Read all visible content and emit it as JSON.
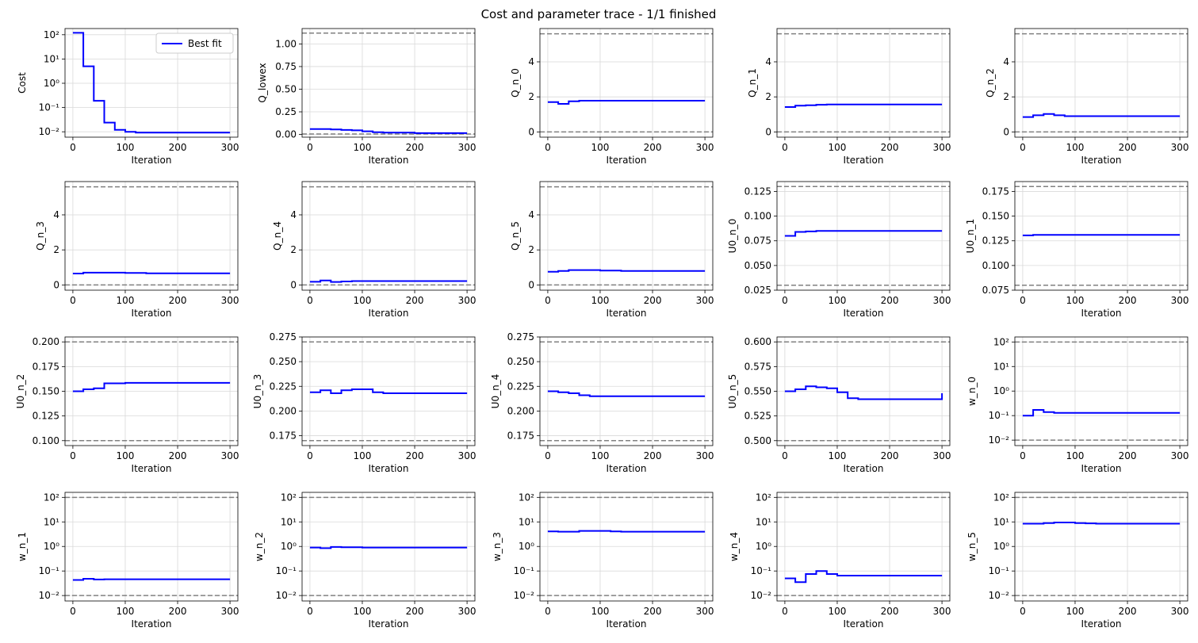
{
  "figure": {
    "title": "Cost and parameter trace - 1/1 finished",
    "legend_label": "Best fit",
    "series_color": "#0000ff",
    "bound_color": "#808080",
    "grid_color": "#d9d9d9"
  },
  "chart_data": [
    {
      "type": "line",
      "id": "cost",
      "ylabel": "Cost",
      "xlabel": "Iteration",
      "yscale": "log",
      "xlim": [
        -15,
        315
      ],
      "ylim": [
        0.006,
        180
      ],
      "xticks": [
        0,
        100,
        200,
        300
      ],
      "yticks": [
        0.01,
        0.1,
        1,
        10,
        100
      ],
      "ytick_labels": [
        "10⁻²",
        "10⁻¹",
        "10⁰",
        "10¹",
        "10²"
      ],
      "bounds": [],
      "legend": "upper right",
      "grid": true,
      "steps": [
        [
          0,
          120
        ],
        [
          20,
          5
        ],
        [
          40,
          0.19
        ],
        [
          60,
          0.024
        ],
        [
          80,
          0.012
        ],
        [
          100,
          0.01
        ],
        [
          120,
          0.0092
        ],
        [
          300,
          0.0092
        ]
      ]
    },
    {
      "type": "line",
      "id": "Q_lowex",
      "ylabel": "Q_lowex",
      "xlabel": "Iteration",
      "yscale": "linear",
      "xlim": [
        -15,
        315
      ],
      "ylim": [
        -0.03,
        1.17
      ],
      "xticks": [
        0,
        100,
        200,
        300
      ],
      "yticks": [
        0,
        0.25,
        0.5,
        0.75,
        1
      ],
      "ytick_labels": [
        "0.00",
        "0.25",
        "0.50",
        "0.75",
        "1.00"
      ],
      "bounds": [
        0.005,
        1.12
      ],
      "grid": true,
      "steps": [
        [
          0,
          0.06
        ],
        [
          40,
          0.055
        ],
        [
          60,
          0.05
        ],
        [
          80,
          0.045
        ],
        [
          100,
          0.035
        ],
        [
          120,
          0.025
        ],
        [
          140,
          0.02
        ],
        [
          200,
          0.015
        ],
        [
          300,
          0.015
        ]
      ]
    },
    {
      "type": "line",
      "id": "Q_n_0",
      "ylabel": "Q_n_0",
      "xlabel": "Iteration",
      "yscale": "linear",
      "xlim": [
        -15,
        315
      ],
      "ylim": [
        -0.3,
        5.9
      ],
      "xticks": [
        0,
        100,
        200,
        300
      ],
      "yticks": [
        0,
        2,
        4
      ],
      "ytick_labels": [
        "0",
        "2",
        "4"
      ],
      "bounds": [
        0,
        5.6
      ],
      "grid": true,
      "steps": [
        [
          0,
          1.7
        ],
        [
          20,
          1.6
        ],
        [
          40,
          1.75
        ],
        [
          60,
          1.78
        ],
        [
          300,
          1.78
        ]
      ]
    },
    {
      "type": "line",
      "id": "Q_n_1",
      "ylabel": "Q_n_1",
      "xlabel": "Iteration",
      "yscale": "linear",
      "xlim": [
        -15,
        315
      ],
      "ylim": [
        -0.3,
        5.9
      ],
      "xticks": [
        0,
        100,
        200,
        300
      ],
      "yticks": [
        0,
        2,
        4
      ],
      "ytick_labels": [
        "0",
        "2",
        "4"
      ],
      "bounds": [
        0,
        5.6
      ],
      "grid": true,
      "steps": [
        [
          0,
          1.42
        ],
        [
          20,
          1.5
        ],
        [
          40,
          1.52
        ],
        [
          60,
          1.55
        ],
        [
          80,
          1.57
        ],
        [
          300,
          1.57
        ]
      ]
    },
    {
      "type": "line",
      "id": "Q_n_2",
      "ylabel": "Q_n_2",
      "xlabel": "Iteration",
      "yscale": "linear",
      "xlim": [
        -15,
        315
      ],
      "ylim": [
        -0.3,
        5.9
      ],
      "xticks": [
        0,
        100,
        200,
        300
      ],
      "yticks": [
        0,
        2,
        4
      ],
      "ytick_labels": [
        "0",
        "2",
        "4"
      ],
      "bounds": [
        0,
        5.6
      ],
      "grid": true,
      "steps": [
        [
          0,
          0.85
        ],
        [
          20,
          0.95
        ],
        [
          40,
          1.02
        ],
        [
          60,
          0.95
        ],
        [
          80,
          0.9
        ],
        [
          300,
          0.9
        ]
      ]
    },
    {
      "type": "line",
      "id": "Q_n_3",
      "ylabel": "Q_n_3",
      "xlabel": "Iteration",
      "yscale": "linear",
      "xlim": [
        -15,
        315
      ],
      "ylim": [
        -0.3,
        5.9
      ],
      "xticks": [
        0,
        100,
        200,
        300
      ],
      "yticks": [
        0,
        2,
        4
      ],
      "ytick_labels": [
        "0",
        "2",
        "4"
      ],
      "bounds": [
        0,
        5.6
      ],
      "grid": true,
      "steps": [
        [
          0,
          0.65
        ],
        [
          20,
          0.7
        ],
        [
          100,
          0.68
        ],
        [
          140,
          0.66
        ],
        [
          300,
          0.66
        ]
      ]
    },
    {
      "type": "line",
      "id": "Q_n_4",
      "ylabel": "Q_n_4",
      "xlabel": "Iteration",
      "yscale": "linear",
      "xlim": [
        -15,
        315
      ],
      "ylim": [
        -0.3,
        5.9
      ],
      "xticks": [
        0,
        100,
        200,
        300
      ],
      "yticks": [
        0,
        2,
        4
      ],
      "ytick_labels": [
        "0",
        "2",
        "4"
      ],
      "bounds": [
        0,
        5.6
      ],
      "grid": true,
      "steps": [
        [
          0,
          0.18
        ],
        [
          20,
          0.25
        ],
        [
          40,
          0.17
        ],
        [
          60,
          0.2
        ],
        [
          80,
          0.22
        ],
        [
          300,
          0.22
        ]
      ]
    },
    {
      "type": "line",
      "id": "Q_n_5",
      "ylabel": "Q_n_5",
      "xlabel": "Iteration",
      "yscale": "linear",
      "xlim": [
        -15,
        315
      ],
      "ylim": [
        -0.3,
        5.9
      ],
      "xticks": [
        0,
        100,
        200,
        300
      ],
      "yticks": [
        0,
        2,
        4
      ],
      "ytick_labels": [
        "0",
        "2",
        "4"
      ],
      "bounds": [
        0,
        5.6
      ],
      "grid": true,
      "steps": [
        [
          0,
          0.75
        ],
        [
          20,
          0.8
        ],
        [
          40,
          0.85
        ],
        [
          100,
          0.82
        ],
        [
          140,
          0.8
        ],
        [
          300,
          0.8
        ]
      ]
    },
    {
      "type": "line",
      "id": "U0_n_0",
      "ylabel": "U0_n_0",
      "xlabel": "Iteration",
      "yscale": "linear",
      "xlim": [
        -15,
        315
      ],
      "ylim": [
        0.025,
        0.135
      ],
      "xticks": [
        0,
        100,
        200,
        300
      ],
      "yticks": [
        0.025,
        0.05,
        0.075,
        0.1,
        0.125
      ],
      "ytick_labels": [
        "0.025",
        "0.050",
        "0.075",
        "0.100",
        "0.125"
      ],
      "bounds": [
        0.03,
        0.13
      ],
      "grid": true,
      "steps": [
        [
          0,
          0.08
        ],
        [
          20,
          0.084
        ],
        [
          40,
          0.0845
        ],
        [
          60,
          0.085
        ],
        [
          300,
          0.085
        ]
      ]
    },
    {
      "type": "line",
      "id": "U0_n_1",
      "ylabel": "U0_n_1",
      "xlabel": "Iteration",
      "yscale": "linear",
      "xlim": [
        -15,
        315
      ],
      "ylim": [
        0.075,
        0.185
      ],
      "xticks": [
        0,
        100,
        200,
        300
      ],
      "yticks": [
        0.075,
        0.1,
        0.125,
        0.15,
        0.175
      ],
      "ytick_labels": [
        "0.075",
        "0.100",
        "0.125",
        "0.150",
        "0.175"
      ],
      "bounds": [
        0.08,
        0.18
      ],
      "grid": true,
      "steps": [
        [
          0,
          0.1305
        ],
        [
          20,
          0.131
        ],
        [
          300,
          0.131
        ]
      ]
    },
    {
      "type": "line",
      "id": "U0_n_2",
      "ylabel": "U0_n_2",
      "xlabel": "Iteration",
      "yscale": "linear",
      "xlim": [
        -15,
        315
      ],
      "ylim": [
        0.095,
        0.205
      ],
      "xticks": [
        0,
        100,
        200,
        300
      ],
      "yticks": [
        0.1,
        0.125,
        0.15,
        0.175,
        0.2
      ],
      "ytick_labels": [
        "0.100",
        "0.125",
        "0.150",
        "0.175",
        "0.200"
      ],
      "bounds": [
        0.1,
        0.2
      ],
      "grid": true,
      "steps": [
        [
          0,
          0.15
        ],
        [
          20,
          0.152
        ],
        [
          40,
          0.153
        ],
        [
          60,
          0.158
        ],
        [
          100,
          0.1585
        ],
        [
          300,
          0.1585
        ]
      ]
    },
    {
      "type": "line",
      "id": "U0_n_3",
      "ylabel": "U0_n_3",
      "xlabel": "Iteration",
      "yscale": "linear",
      "xlim": [
        -15,
        315
      ],
      "ylim": [
        0.165,
        0.275
      ],
      "xticks": [
        0,
        100,
        200,
        300
      ],
      "yticks": [
        0.175,
        0.2,
        0.225,
        0.25,
        0.275
      ],
      "ytick_labels": [
        "0.175",
        "0.200",
        "0.225",
        "0.250",
        "0.275"
      ],
      "bounds": [
        0.17,
        0.27
      ],
      "grid": true,
      "steps": [
        [
          0,
          0.219
        ],
        [
          20,
          0.221
        ],
        [
          40,
          0.218
        ],
        [
          60,
          0.221
        ],
        [
          80,
          0.222
        ],
        [
          120,
          0.219
        ],
        [
          140,
          0.218
        ],
        [
          300,
          0.218
        ]
      ]
    },
    {
      "type": "line",
      "id": "U0_n_4",
      "ylabel": "U0_n_4",
      "xlabel": "Iteration",
      "yscale": "linear",
      "xlim": [
        -15,
        315
      ],
      "ylim": [
        0.165,
        0.275
      ],
      "xticks": [
        0,
        100,
        200,
        300
      ],
      "yticks": [
        0.175,
        0.2,
        0.225,
        0.25,
        0.275
      ],
      "ytick_labels": [
        "0.175",
        "0.200",
        "0.225",
        "0.250",
        "0.275"
      ],
      "bounds": [
        0.17,
        0.27
      ],
      "grid": true,
      "steps": [
        [
          0,
          0.22
        ],
        [
          20,
          0.219
        ],
        [
          40,
          0.218
        ],
        [
          60,
          0.216
        ],
        [
          80,
          0.215
        ],
        [
          300,
          0.215
        ]
      ]
    },
    {
      "type": "line",
      "id": "U0_n_5",
      "ylabel": "U0_n_5",
      "xlabel": "Iteration",
      "yscale": "linear",
      "xlim": [
        -15,
        315
      ],
      "ylim": [
        0.495,
        0.605
      ],
      "xticks": [
        0,
        100,
        200,
        300
      ],
      "yticks": [
        0.5,
        0.525,
        0.55,
        0.575,
        0.6
      ],
      "ytick_labels": [
        "0.500",
        "0.525",
        "0.550",
        "0.575",
        "0.600"
      ],
      "bounds": [
        0.5,
        0.6
      ],
      "grid": true,
      "steps": [
        [
          0,
          0.55
        ],
        [
          20,
          0.552
        ],
        [
          40,
          0.555
        ],
        [
          60,
          0.554
        ],
        [
          80,
          0.553
        ],
        [
          100,
          0.549
        ],
        [
          120,
          0.543
        ],
        [
          140,
          0.542
        ],
        [
          295,
          0.542
        ],
        [
          300,
          0.548
        ]
      ]
    },
    {
      "type": "line",
      "id": "w_n_0",
      "ylabel": "w_n_0",
      "xlabel": "Iteration",
      "yscale": "log",
      "xlim": [
        -15,
        315
      ],
      "ylim": [
        0.006,
        160
      ],
      "xticks": [
        0,
        100,
        200,
        300
      ],
      "yticks": [
        0.01,
        0.1,
        1,
        10,
        100
      ],
      "ytick_labels": [
        "10⁻²",
        "10⁻¹",
        "10⁰",
        "10¹",
        "10²"
      ],
      "bounds": [
        0.01,
        100
      ],
      "grid": true,
      "steps": [
        [
          0,
          0.1
        ],
        [
          20,
          0.17
        ],
        [
          40,
          0.14
        ],
        [
          60,
          0.13
        ],
        [
          300,
          0.13
        ]
      ]
    },
    {
      "type": "line",
      "id": "w_n_1",
      "ylabel": "w_n_1",
      "xlabel": "Iteration",
      "yscale": "log",
      "xlim": [
        -15,
        315
      ],
      "ylim": [
        0.006,
        160
      ],
      "xticks": [
        0,
        100,
        200,
        300
      ],
      "yticks": [
        0.01,
        0.1,
        1,
        10,
        100
      ],
      "ytick_labels": [
        "10⁻²",
        "10⁻¹",
        "10⁰",
        "10¹",
        "10²"
      ],
      "bounds": [
        0.01,
        100
      ],
      "grid": true,
      "steps": [
        [
          0,
          0.043
        ],
        [
          20,
          0.048
        ],
        [
          40,
          0.045
        ],
        [
          60,
          0.046
        ],
        [
          300,
          0.046
        ]
      ]
    },
    {
      "type": "line",
      "id": "w_n_2",
      "ylabel": "w_n_2",
      "xlabel": "Iteration",
      "yscale": "log",
      "xlim": [
        -15,
        315
      ],
      "ylim": [
        0.006,
        160
      ],
      "xticks": [
        0,
        100,
        200,
        300
      ],
      "yticks": [
        0.01,
        0.1,
        1,
        10,
        100
      ],
      "ytick_labels": [
        "10⁻²",
        "10⁻¹",
        "10⁰",
        "10¹",
        "10²"
      ],
      "bounds": [
        0.01,
        100
      ],
      "grid": true,
      "steps": [
        [
          0,
          0.9
        ],
        [
          20,
          0.85
        ],
        [
          40,
          0.95
        ],
        [
          60,
          0.92
        ],
        [
          100,
          0.9
        ],
        [
          300,
          0.9
        ]
      ]
    },
    {
      "type": "line",
      "id": "w_n_3",
      "ylabel": "w_n_3",
      "xlabel": "Iteration",
      "yscale": "log",
      "xlim": [
        -15,
        315
      ],
      "ylim": [
        0.006,
        160
      ],
      "xticks": [
        0,
        100,
        200,
        300
      ],
      "yticks": [
        0.01,
        0.1,
        1,
        10,
        100
      ],
      "ytick_labels": [
        "10⁻²",
        "10⁻¹",
        "10⁰",
        "10¹",
        "10²"
      ],
      "bounds": [
        0.01,
        100
      ],
      "grid": true,
      "steps": [
        [
          0,
          4.1
        ],
        [
          20,
          4
        ],
        [
          60,
          4.3
        ],
        [
          120,
          4.1
        ],
        [
          140,
          4
        ],
        [
          300,
          4
        ]
      ]
    },
    {
      "type": "line",
      "id": "w_n_4",
      "ylabel": "w_n_4",
      "xlabel": "Iteration",
      "yscale": "log",
      "xlim": [
        -15,
        315
      ],
      "ylim": [
        0.006,
        160
      ],
      "xticks": [
        0,
        100,
        200,
        300
      ],
      "yticks": [
        0.01,
        0.1,
        1,
        10,
        100
      ],
      "ytick_labels": [
        "10⁻²",
        "10⁻¹",
        "10⁰",
        "10¹",
        "10²"
      ],
      "bounds": [
        0.01,
        100
      ],
      "grid": true,
      "steps": [
        [
          0,
          0.05
        ],
        [
          20,
          0.035
        ],
        [
          40,
          0.075
        ],
        [
          60,
          0.1
        ],
        [
          80,
          0.075
        ],
        [
          100,
          0.065
        ],
        [
          300,
          0.065
        ]
      ]
    },
    {
      "type": "line",
      "id": "w_n_5",
      "ylabel": "w_n_5",
      "xlabel": "Iteration",
      "yscale": "log",
      "xlim": [
        -15,
        315
      ],
      "ylim": [
        0.006,
        160
      ],
      "xticks": [
        0,
        100,
        200,
        300
      ],
      "yticks": [
        0.01,
        0.1,
        1,
        10,
        100
      ],
      "ytick_labels": [
        "10⁻²",
        "10⁻¹",
        "10⁰",
        "10¹",
        "10²"
      ],
      "bounds": [
        0.01,
        100
      ],
      "grid": true,
      "steps": [
        [
          0,
          8.5
        ],
        [
          40,
          9
        ],
        [
          60,
          9.5
        ],
        [
          100,
          9
        ],
        [
          120,
          8.7
        ],
        [
          140,
          8.5
        ],
        [
          300,
          8.5
        ]
      ]
    }
  ]
}
